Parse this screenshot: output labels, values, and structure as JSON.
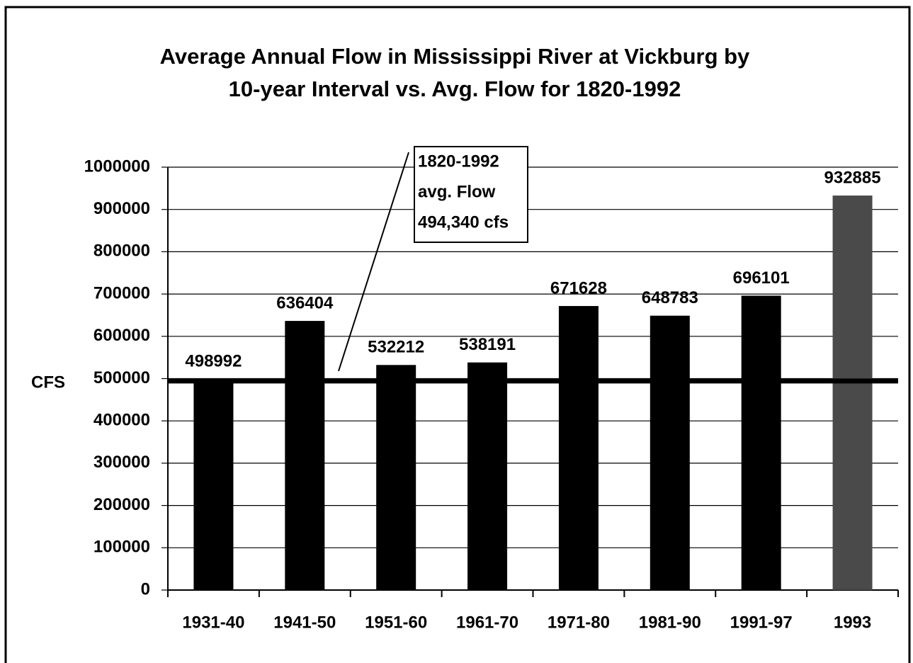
{
  "chart_data": {
    "type": "bar",
    "title": [
      "Average Annual Flow in Mississippi River at Vickburg by",
      "10-year Interval vs. Avg. Flow for 1820-1992"
    ],
    "y_label": "CFS",
    "categories": [
      "1931-40",
      "1941-50",
      "1951-60",
      "1961-70",
      "1971-80",
      "1981-90",
      "1991-97",
      "1993"
    ],
    "values": [
      498992,
      636404,
      532212,
      538191,
      671628,
      648783,
      696101,
      932885
    ],
    "colors": [
      "#000000",
      "#000000",
      "#000000",
      "#000000",
      "#000000",
      "#000000",
      "#000000",
      "#4a4a4a"
    ],
    "ylim": [
      0,
      1000000
    ],
    "yticks": [
      0,
      100000,
      200000,
      300000,
      400000,
      500000,
      600000,
      700000,
      800000,
      900000,
      1000000
    ],
    "grid": true,
    "reference_line": {
      "value": 494340,
      "annotation": [
        "1820-1992",
        "avg. Flow",
        "494,340 cfs"
      ]
    }
  }
}
